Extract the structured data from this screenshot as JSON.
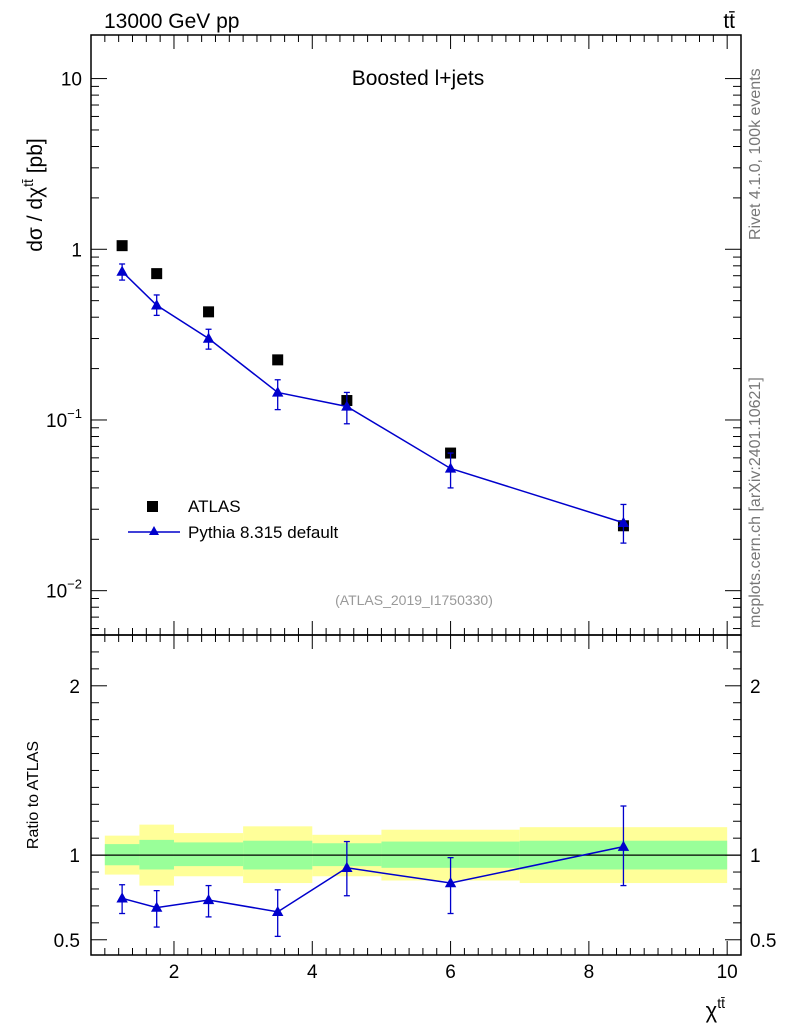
{
  "header": {
    "energy_label": "13000 GeV pp",
    "process_label": "tt̄"
  },
  "side": {
    "rivet_label": "Rivet 4.1.0,  100k events",
    "mcplots_label": "mcplots.cern.ch [arXiv:2401.10621]"
  },
  "chart_data": [
    {
      "type": "scatter",
      "title": "Boosted l+jets",
      "watermark": "(ATLAS_2019_I1750330)",
      "ylabel_prefix": "dσ / dχ",
      "ylabel_sup": "tt̄",
      "ylabel_suffix": " [pb]",
      "yscale": "log",
      "ylim": [
        0.0055,
        18
      ],
      "xlim": [
        0.8,
        10.2
      ],
      "ytick_labels": [
        {
          "base": "10",
          "exp": "",
          "value": 10
        },
        {
          "base": "1",
          "exp": "",
          "value": 1
        },
        {
          "base": "10",
          "exp": "−1",
          "value": 0.1
        },
        {
          "base": "10",
          "exp": "−2",
          "value": 0.01
        }
      ],
      "legend": [
        {
          "label": "ATLAS",
          "marker": "square",
          "color": "#000000"
        },
        {
          "label": "Pythia 8.315 default",
          "marker": "triangle",
          "color": "#0000cc"
        }
      ],
      "series": [
        {
          "name": "ATLAS",
          "x": [
            1.25,
            1.75,
            2.5,
            3.5,
            4.5,
            6.0,
            8.5
          ],
          "y": [
            1.05,
            0.72,
            0.43,
            0.225,
            0.13,
            0.064,
            0.024
          ]
        },
        {
          "name": "Pythia 8.315 default",
          "x": [
            1.25,
            1.75,
            2.5,
            3.5,
            4.5,
            6.0,
            8.5
          ],
          "y": [
            0.74,
            0.47,
            0.3,
            0.145,
            0.12,
            0.052,
            0.025
          ],
          "yerr_low": [
            0.66,
            0.41,
            0.26,
            0.115,
            0.095,
            0.04,
            0.019
          ],
          "yerr_high": [
            0.82,
            0.54,
            0.34,
            0.172,
            0.145,
            0.064,
            0.032
          ]
        }
      ],
      "bins": [
        1.0,
        1.5,
        2.0,
        3.0,
        4.0,
        5.0,
        7.0,
        10.0
      ]
    },
    {
      "type": "scatter",
      "ylabel": "Ratio to ATLAS",
      "xlabel": "χ",
      "xlabel_sup": "tt̄",
      "ylim": [
        0.41,
        2.3
      ],
      "xlim": [
        0.8,
        10.2
      ],
      "xtick_labels": [
        {
          "label": "2",
          "value": 2
        },
        {
          "label": "4",
          "value": 4
        },
        {
          "label": "6",
          "value": 6
        },
        {
          "label": "8",
          "value": 8
        },
        {
          "label": "10",
          "value": 10
        }
      ],
      "ytick_labels": [
        {
          "label": "2",
          "value": 2
        },
        {
          "label": "1",
          "value": 1
        },
        {
          "label": "0.5",
          "value": 0.5
        }
      ],
      "bins": [
        1.0,
        1.5,
        2.0,
        3.0,
        4.0,
        5.0,
        7.0,
        10.0
      ],
      "band_yellow_low": [
        0.885,
        0.82,
        0.875,
        0.835,
        0.875,
        0.85,
        0.835
      ],
      "band_yellow_high": [
        1.115,
        1.18,
        1.13,
        1.17,
        1.12,
        1.15,
        1.165
      ],
      "band_green_low": [
        0.94,
        0.915,
        0.935,
        0.915,
        0.935,
        0.925,
        0.915
      ],
      "band_green_high": [
        1.065,
        1.09,
        1.075,
        1.085,
        1.07,
        1.08,
        1.085
      ],
      "series": [
        {
          "name": "Pythia 8.315 default / ATLAS",
          "x": [
            1.25,
            1.75,
            2.5,
            3.5,
            4.5,
            6.0,
            8.5
          ],
          "y": [
            0.745,
            0.69,
            0.735,
            0.665,
            0.925,
            0.835,
            1.05
          ],
          "yerr_low": [
            0.655,
            0.575,
            0.635,
            0.52,
            0.76,
            0.655,
            0.82
          ],
          "yerr_high": [
            0.825,
            0.79,
            0.82,
            0.795,
            1.08,
            0.985,
            1.29
          ]
        }
      ]
    }
  ]
}
